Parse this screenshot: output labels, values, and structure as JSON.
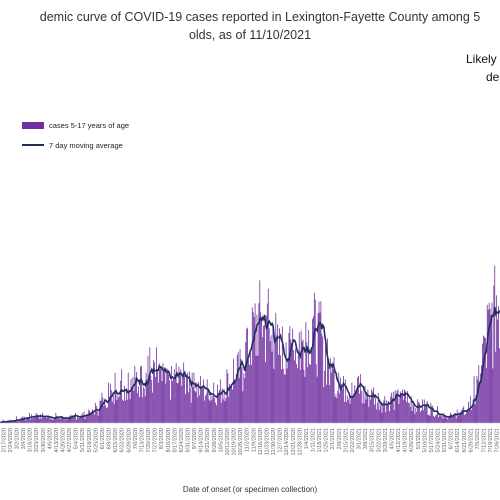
{
  "chart_data": {
    "type": "bar",
    "title_line1": "demic curve of COVID-19 cases reported in Lexington-Fayette County among 5",
    "title_line2": "olds, as of 11/10/2021",
    "annotation_line1": "Likely",
    "annotation_line2": "de",
    "xlabel": "Date of onset (or specimen collection)",
    "ylabel": "",
    "colors": {
      "bar": "#7030a0",
      "line": "#1f2f5c"
    },
    "series": [
      {
        "name": "cases 5-17 years of age",
        "kind": "bar"
      },
      {
        "name": "7 day moving average",
        "kind": "line"
      }
    ],
    "grid": false,
    "legend_placement": "top-left",
    "x_tick_labels": [
      "2/17/2020",
      "2/24/2020",
      "3/2/2020",
      "3/9/2020",
      "3/16/2020",
      "3/23/2020",
      "3/30/2020",
      "4/6/2020",
      "4/13/2020",
      "4/20/2020",
      "4/27/2020",
      "5/4/2020",
      "5/11/2020",
      "5/18/2020",
      "5/25/2020",
      "6/1/2020",
      "6/8/2020",
      "6/15/2020",
      "6/22/2020",
      "6/29/2020",
      "7/6/2020",
      "7/13/2020",
      "7/20/2020",
      "7/27/2020",
      "8/3/2020",
      "8/10/2020",
      "8/17/2020",
      "8/24/2020",
      "8/31/2020",
      "9/7/2020",
      "9/14/2020",
      "9/21/2020",
      "9/28/2020",
      "10/5/2020",
      "10/12/2020",
      "10/19/2020",
      "10/26/2020",
      "11/2/2020",
      "11/9/2020",
      "11/16/2020",
      "11/23/2020",
      "11/30/2020",
      "12/7/2020",
      "12/14/2020",
      "12/21/2020",
      "12/28/2020",
      "1/4/2021",
      "1/11/2021",
      "1/18/2021",
      "1/25/2021",
      "2/1/2021",
      "2/8/2021",
      "2/15/2021",
      "2/22/2021",
      "3/1/2021",
      "3/8/2021",
      "3/15/2021",
      "3/22/2021",
      "3/29/2021",
      "4/5/2021",
      "4/12/2021",
      "4/19/2021",
      "4/26/2021",
      "5/3/2021",
      "5/10/2021",
      "5/17/2021",
      "5/24/2021",
      "5/31/2021",
      "6/7/2021",
      "6/14/2021",
      "6/21/2021",
      "6/28/2021",
      "7/5/2021",
      "7/12/2021",
      "7/19/2021",
      "7/26/2021"
    ],
    "weekly_average": [
      0.2,
      0.4,
      0.6,
      0.9,
      1.2,
      1.6,
      1.5,
      1.3,
      1.2,
      1.1,
      1.2,
      1.4,
      1.6,
      2,
      3,
      4.5,
      6,
      7.5,
      8,
      8.5,
      9,
      10,
      11,
      11,
      10,
      9,
      9.5,
      10,
      10,
      8.5,
      8,
      7.5,
      7,
      7.5,
      9,
      10.5,
      12,
      16,
      20,
      24,
      22,
      19,
      17,
      15,
      18,
      17,
      20,
      22,
      20,
      15,
      11,
      9,
      8,
      7,
      8,
      6,
      6,
      5,
      4.5,
      5,
      5.5,
      6,
      4.5,
      3.5,
      4,
      3,
      2.5,
      1.5,
      1.5,
      2,
      2.5,
      4,
      8,
      16,
      22,
      26
    ],
    "daily_cases_weekly_peaks": [
      1,
      1,
      2,
      2,
      3,
      3,
      3,
      2,
      3,
      2,
      2,
      3,
      3,
      4,
      6,
      9,
      12,
      15,
      16,
      15,
      17,
      17,
      20,
      18,
      17,
      16,
      16,
      16,
      15,
      15,
      14,
      13,
      12,
      13,
      16,
      19,
      22,
      28,
      33,
      36,
      32,
      28,
      26,
      24,
      28,
      27,
      30,
      31,
      29,
      23,
      18,
      15,
      13,
      12,
      14,
      11,
      10,
      9,
      8,
      9,
      10,
      10,
      8,
      7,
      7,
      6,
      5,
      3,
      3,
      4,
      5,
      8,
      14,
      26,
      34,
      38
    ],
    "ylim": [
      0,
      40
    ]
  }
}
